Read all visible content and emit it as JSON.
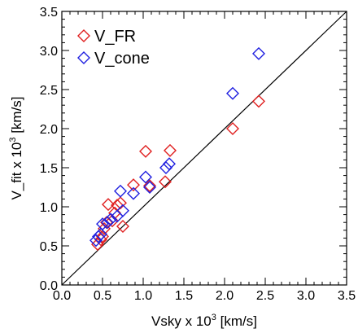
{
  "chart_data": {
    "type": "scatter",
    "title": "",
    "xlabel": "Vsky x 10",
    "xlabel_exponent": "3",
    "xlabel_unit": " [km/s]",
    "ylabel": "V_fit x 10",
    "ylabel_exponent": "3",
    "ylabel_unit": " [km/s]",
    "xlim": [
      0.0,
      3.5
    ],
    "ylim": [
      0.0,
      3.5
    ],
    "x_ticks": [
      "0.0",
      "0.5",
      "1.0",
      "1.5",
      "2.0",
      "2.5",
      "3.0",
      "3.5"
    ],
    "y_ticks": [
      "0.0",
      "0.5",
      "1.0",
      "1.5",
      "2.0",
      "2.5",
      "3.0",
      "3.5"
    ],
    "grid": false,
    "legend_position": "top-left",
    "reference_line": {
      "x": [
        0.0,
        3.5
      ],
      "y": [
        0.0,
        3.5
      ]
    },
    "series": [
      {
        "name": "V_FR",
        "color": "#e02020",
        "marker": "diamond-open",
        "points": [
          {
            "x": 0.44,
            "y": 0.52
          },
          {
            "x": 0.48,
            "y": 0.58
          },
          {
            "x": 0.5,
            "y": 0.62
          },
          {
            "x": 0.52,
            "y": 0.72
          },
          {
            "x": 0.55,
            "y": 0.8
          },
          {
            "x": 0.57,
            "y": 1.03
          },
          {
            "x": 0.62,
            "y": 0.82
          },
          {
            "x": 0.65,
            "y": 0.92
          },
          {
            "x": 0.68,
            "y": 1.02
          },
          {
            "x": 0.72,
            "y": 1.05
          },
          {
            "x": 0.75,
            "y": 0.75
          },
          {
            "x": 0.88,
            "y": 1.28
          },
          {
            "x": 1.03,
            "y": 1.71
          },
          {
            "x": 1.08,
            "y": 1.27
          },
          {
            "x": 1.27,
            "y": 1.32
          },
          {
            "x": 1.33,
            "y": 1.72
          },
          {
            "x": 2.1,
            "y": 2.0
          },
          {
            "x": 2.42,
            "y": 2.35
          }
        ]
      },
      {
        "name": "V_cone",
        "color": "#2020e0",
        "marker": "diamond-open",
        "points": [
          {
            "x": 0.42,
            "y": 0.57
          },
          {
            "x": 0.45,
            "y": 0.62
          },
          {
            "x": 0.48,
            "y": 0.65
          },
          {
            "x": 0.5,
            "y": 0.78
          },
          {
            "x": 0.56,
            "y": 0.8
          },
          {
            "x": 0.6,
            "y": 0.84
          },
          {
            "x": 0.68,
            "y": 0.88
          },
          {
            "x": 0.72,
            "y": 1.2
          },
          {
            "x": 0.75,
            "y": 0.95
          },
          {
            "x": 0.88,
            "y": 1.17
          },
          {
            "x": 1.03,
            "y": 1.38
          },
          {
            "x": 1.08,
            "y": 1.25
          },
          {
            "x": 1.28,
            "y": 1.5
          },
          {
            "x": 1.32,
            "y": 1.55
          },
          {
            "x": 2.1,
            "y": 2.45
          },
          {
            "x": 2.42,
            "y": 2.96
          }
        ]
      }
    ]
  }
}
